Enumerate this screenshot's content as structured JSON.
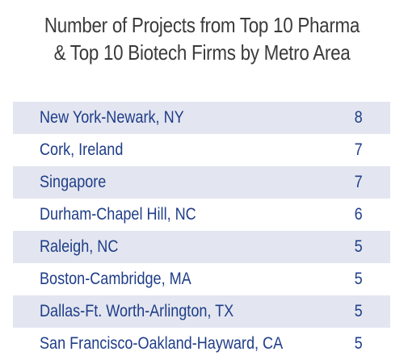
{
  "chart_data": {
    "type": "table",
    "title": "Number of Projects from Top 10 Pharma & Top 10 Biotech Firms by Metro Area",
    "title_lines": [
      "Number of Projects from Top 10 Pharma",
      "& Top 10 Biotech Firms by Metro Area"
    ],
    "rows": [
      {
        "label": "New York-Newark, NY",
        "value": 8
      },
      {
        "label": "Cork, Ireland",
        "value": 7
      },
      {
        "label": "Singapore",
        "value": 7
      },
      {
        "label": "Durham-Chapel Hill, NC",
        "value": 6
      },
      {
        "label": "Raleigh, NC",
        "value": 5
      },
      {
        "label": "Boston-Cambridge, MA",
        "value": 5
      },
      {
        "label": "Dallas-Ft. Worth-Arlington, TX",
        "value": 5
      },
      {
        "label": "San Francisco-Oakland-Hayward, CA",
        "value": 5
      }
    ]
  },
  "colors": {
    "title_text": "#3a3a3a",
    "row_text": "#1f3d88",
    "shaded_row": "#e3e6f0",
    "background": "#ffffff"
  }
}
